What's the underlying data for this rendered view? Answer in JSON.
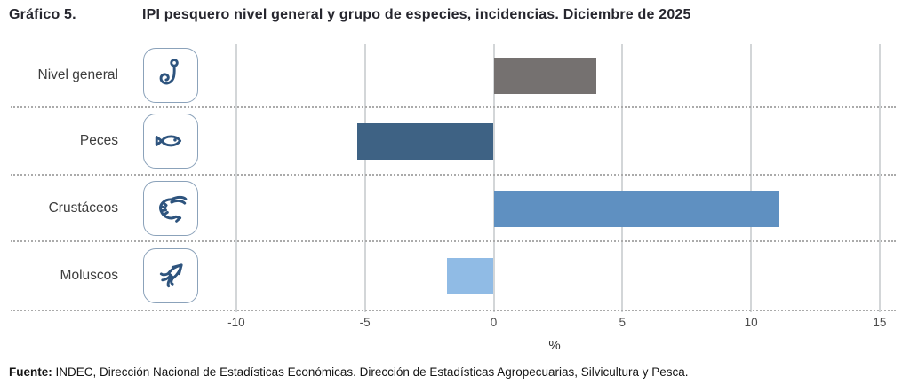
{
  "header": {
    "figure_label": "Gráfico 5.",
    "title": "IPI pesquero nivel general y grupo de especies, incidencias. Diciembre de 2025"
  },
  "footer": {
    "source_label": "Fuente:",
    "source_text": " INDEC, Dirección Nacional de Estadísticas Económicas. Dirección de Estadísticas Agropecuarias, Silvicultura y Pesca."
  },
  "chart_data": {
    "type": "bar",
    "orientation": "horizontal",
    "title": "IPI pesquero nivel general y grupo de especies, incidencias. Diciembre de 2025",
    "categories": [
      "Nivel general",
      "Peces",
      "Crustáceos",
      "Moluscos"
    ],
    "values": [
      4.0,
      -5.3,
      11.1,
      -1.8
    ],
    "bar_colors": [
      "#757170",
      "#3e6284",
      "#5f90c1",
      "#90bbe5"
    ],
    "row_icons": [
      "fishhook-icon",
      "fish-icon",
      "shrimp-icon",
      "squid-icon"
    ],
    "xlabel": "%",
    "xticks": [
      -10,
      -5,
      0,
      5,
      10,
      15
    ],
    "xlim": [
      -10,
      15
    ],
    "grid": "vertical-gridlines-at-ticks, dotted horizontal row separators",
    "legend": "none",
    "icon_stroke_color": "#2e547e",
    "icon_border_color": "#8ba2ba",
    "gridline_color": "#d3d6d8"
  }
}
